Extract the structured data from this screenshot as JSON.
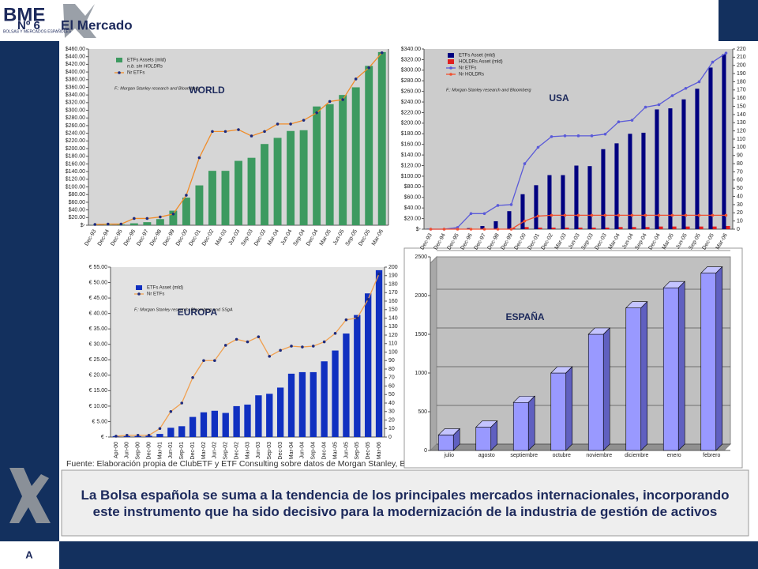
{
  "header": {
    "logo": "BME",
    "logo_sub": "BOLSAS Y MERCADOS ESPAÑOLES",
    "number": "Nº 6",
    "section": "El Mercado"
  },
  "source": "Fuente: Elaboración propia de ClubETF y ETF Consulting sobre datos de Morgan Stanley, Bloomberg, SSgA y BME",
  "message": "La Bolsa española se suma a la tendencia de los principales mercados internacionales, incorporando este instrumento que ha sido decisivo para la modernización de la industria de gestión de activos",
  "footer": "A",
  "chart_data": [
    {
      "type": "combo",
      "title": "WORLD",
      "note": "F.: Morgan Stanley research and Bloomberg",
      "legend_note": "n.b. sin HOLDRs",
      "categories": [
        "Dec-93",
        "Dec-94",
        "Dec-95",
        "Dec-96",
        "Dec-97",
        "Dec-98",
        "Dec-99",
        "Dec-00",
        "Dec-01",
        "Dec-02",
        "Mar-03",
        "Jun-03",
        "Sep-03",
        "Dec-03",
        "Mar-04",
        "Jun-04",
        "Sep-04",
        "Dec-04",
        "Mar-05",
        "Jun-05",
        "Sep-05",
        "Dec-05",
        "Mar-06"
      ],
      "series": [
        {
          "name": "ETFs Assets (mld)",
          "color": "#3d9a60",
          "values": [
            0.5,
            1,
            2,
            5,
            8,
            16,
            38,
            72,
            104,
            142,
            142,
            168,
            176,
            212,
            228,
            246,
            248,
            310,
            316,
            340,
            360,
            416,
            452
          ]
        },
        {
          "name": "Nr ETFs",
          "color": "#f08c28",
          "axis": "y2",
          "values": [
            2,
            3,
            3,
            18,
            18,
            22,
            30,
            80,
            180,
            250,
            250,
            255,
            238,
            250,
            270,
            270,
            280,
            300,
            330,
            335,
            390,
            420,
            460
          ]
        }
      ],
      "ylim": [
        0,
        460
      ],
      "yticks": [
        {
          "value": 0,
          "label": "$-"
        },
        {
          "value": 20,
          "label": "$20.00"
        },
        {
          "value": 40,
          "label": "$40.00"
        },
        {
          "value": 60,
          "label": "$60.00"
        },
        {
          "value": 80,
          "label": "$80.00"
        },
        {
          "value": 100,
          "label": "$100.00"
        },
        {
          "value": 120,
          "label": "$120.00"
        },
        {
          "value": 140,
          "label": "$140.00"
        },
        {
          "value": 160,
          "label": "$160.00"
        },
        {
          "value": 180,
          "label": "$180.00"
        },
        {
          "value": 200,
          "label": "$200.00"
        },
        {
          "value": 220,
          "label": "$220.00"
        },
        {
          "value": 240,
          "label": "$240.00"
        },
        {
          "value": 260,
          "label": "$260.00"
        },
        {
          "value": 280,
          "label": "$280.00"
        },
        {
          "value": 300,
          "label": "$300.00"
        },
        {
          "value": 320,
          "label": "$320.00"
        },
        {
          "value": 340,
          "label": "$340.00"
        },
        {
          "value": 360,
          "label": "$360.00"
        },
        {
          "value": 380,
          "label": "$380.00"
        },
        {
          "value": 400,
          "label": "$400.00"
        },
        {
          "value": 420,
          "label": "$420.00"
        },
        {
          "value": 440,
          "label": "$440.00"
        },
        {
          "value": 460,
          "label": "$460.00"
        }
      ],
      "y2lim": [
        0,
        470
      ],
      "grid": false
    },
    {
      "type": "combo",
      "title": "USA",
      "note": "F.: Morgan Stanley research and Bloomberg",
      "categories": [
        "Dec-93",
        "Dec-94",
        "Dec-95",
        "Dec-96",
        "Dec-97",
        "Dec-98",
        "Dec-99",
        "Dec-00",
        "Dec-01",
        "Dec-02",
        "Mar-03",
        "Jun-03",
        "Sep-03",
        "Dec-03",
        "Mar-04",
        "Jun-04",
        "Sep-04",
        "Dec-04",
        "Mar-05",
        "Jun-05",
        "Sep-05",
        "Dec-05",
        "Mar-06"
      ],
      "series": [
        {
          "name": "ETFs Asset (mld)",
          "color": "#000080",
          "values": [
            0.5,
            0.5,
            1,
            2,
            6,
            15,
            34,
            66,
            83,
            102,
            102,
            120,
            119,
            151,
            162,
            180,
            182,
            226,
            228,
            245,
            265,
            305,
            330
          ]
        },
        {
          "name": "HOLDRs Asset (mld)",
          "color": "#e02020",
          "values": [
            0,
            0,
            0,
            0,
            0,
            0,
            2,
            4,
            3,
            3,
            3,
            3,
            3,
            3,
            4,
            4,
            4,
            5,
            5,
            5,
            5,
            5,
            6
          ]
        },
        {
          "name": "Nr ETFs",
          "color": "#5a5ad8",
          "axis": "y2",
          "values": [
            0,
            0,
            2,
            19,
            19,
            29,
            30,
            80,
            100,
            113,
            114,
            114,
            114,
            116,
            131,
            133,
            149,
            152,
            163,
            172,
            180,
            204,
            215
          ]
        },
        {
          "name": "Nr HOLDRs",
          "color": "#f05030",
          "axis": "y2",
          "values": [
            0,
            0,
            0,
            0,
            0,
            0,
            0,
            10,
            16,
            17,
            17,
            17,
            17,
            17,
            17,
            17,
            17,
            17,
            17,
            17,
            17,
            17,
            17
          ]
        }
      ],
      "ylim": [
        0,
        340
      ],
      "yticks": [
        {
          "value": 0,
          "label": "$-"
        },
        {
          "value": 20,
          "label": "$20.00"
        },
        {
          "value": 40,
          "label": "$40.00"
        },
        {
          "value": 60,
          "label": "$60.00"
        },
        {
          "value": 80,
          "label": "$80.00"
        },
        {
          "value": 100,
          "label": "$100.00"
        },
        {
          "value": 120,
          "label": "$120.00"
        },
        {
          "value": 140,
          "label": "$140.00"
        },
        {
          "value": 160,
          "label": "$160.00"
        },
        {
          "value": 180,
          "label": "$180.00"
        },
        {
          "value": 200,
          "label": "$200.00"
        },
        {
          "value": 220,
          "label": "$220.00"
        },
        {
          "value": 240,
          "label": "$240.00"
        },
        {
          "value": 260,
          "label": "$260.00"
        },
        {
          "value": 280,
          "label": "$280.00"
        },
        {
          "value": 300,
          "label": "$300.00"
        },
        {
          "value": 320,
          "label": "$320.00"
        },
        {
          "value": 340,
          "label": "$340.00"
        }
      ],
      "y2lim": [
        0,
        220
      ],
      "y2ticks": [
        0,
        10,
        20,
        30,
        40,
        50,
        60,
        70,
        80,
        90,
        100,
        110,
        120,
        130,
        140,
        150,
        160,
        170,
        180,
        190,
        200,
        210,
        220
      ],
      "grid": false
    },
    {
      "type": "combo",
      "title": "EUROPA",
      "note": "F.: Morgan Stanley research, Bloomberg and SSgA",
      "categories": [
        "Apr-00",
        "Jun-00",
        "Sep-00",
        "Dec-00",
        "Mar-01",
        "Jun-01",
        "Sep-01",
        "Dec-01",
        "Mar-02",
        "Jun-02",
        "Sep-02",
        "Dec-02",
        "Mar-03",
        "Jun-03",
        "Sep-03",
        "Dec-03",
        "Mar-04",
        "Jun-04",
        "Sep-04",
        "Dec-04",
        "Mar-05",
        "Jun-05",
        "Sep-05",
        "Dec-05",
        "Mar-06"
      ],
      "series": [
        {
          "name": "ETFs Asset (mld)",
          "color": "#1030c0",
          "values": [
            0.3,
            0.3,
            0.3,
            0.4,
            1,
            3,
            3.5,
            6.5,
            8,
            8.5,
            7.8,
            10,
            10.5,
            13.5,
            14,
            16,
            20.5,
            21,
            21,
            24.5,
            28,
            33.5,
            39.5,
            46.5,
            54
          ]
        },
        {
          "name": "Nr ETFs",
          "color": "#f0a050",
          "axis": "y2",
          "values": [
            1,
            2,
            2,
            2,
            10,
            30,
            40,
            70,
            90,
            90,
            108,
            115,
            112,
            118,
            95,
            102,
            107,
            106,
            107,
            112,
            122,
            138,
            140,
            162,
            192
          ]
        }
      ],
      "ylim": [
        0,
        55
      ],
      "yticks": [
        {
          "value": 0,
          "label": "€ -"
        },
        {
          "value": 5,
          "label": "€ 5.00"
        },
        {
          "value": 10,
          "label": "€ 10.00"
        },
        {
          "value": 15,
          "label": "€ 15.00"
        },
        {
          "value": 20,
          "label": "€ 20.00"
        },
        {
          "value": 25,
          "label": "€ 25.00"
        },
        {
          "value": 30,
          "label": "€ 30.00"
        },
        {
          "value": 35,
          "label": "€ 35.00"
        },
        {
          "value": 40,
          "label": "€ 40.00"
        },
        {
          "value": 45,
          "label": "€ 45.00"
        },
        {
          "value": 50,
          "label": "€ 50.00"
        },
        {
          "value": 55,
          "label": "€ 55.00"
        }
      ],
      "y2lim": [
        0,
        200
      ],
      "y2ticks": [
        0,
        10,
        20,
        30,
        40,
        50,
        60,
        70,
        80,
        90,
        100,
        110,
        120,
        130,
        140,
        150,
        160,
        170,
        180,
        190,
        200
      ],
      "grid": false
    },
    {
      "type": "bar3d",
      "title": "ESPAÑA",
      "categories": [
        "julio",
        "agosto",
        "septiembre",
        "octubre",
        "noviembre",
        "diciembre",
        "enero",
        "febrero"
      ],
      "series": [
        {
          "color": "#9999ff",
          "values": [
            200,
            300,
            620,
            1000,
            1500,
            1840,
            2100,
            2290
          ]
        }
      ],
      "ylim": [
        0,
        2500
      ],
      "yticks": [
        0,
        500,
        1000,
        1500,
        2000,
        2500
      ],
      "grid": true
    }
  ]
}
